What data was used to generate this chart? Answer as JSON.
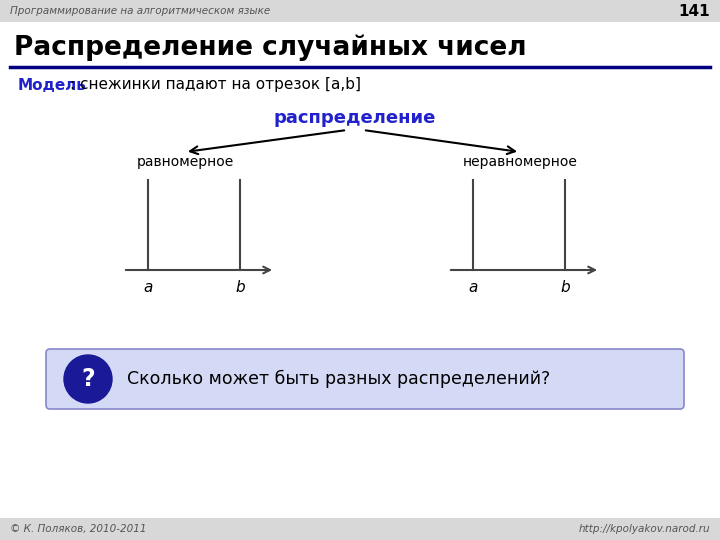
{
  "title": "Распределение случайных чисел",
  "subtitle_bold": "Модель",
  "subtitle_rest": ": снежинки падают на отрезок [a,b]",
  "tree_label": "распределение",
  "left_label": "равномерное",
  "right_label": "неравномерное",
  "question_text": "Сколько может быть разных распределений?",
  "footer_left": "© К. Поляков, 2010-2011",
  "footer_right": "http://kpolyakov.narod.ru",
  "page_number": "141",
  "header_text": "Программирование на алгоритмическом языке",
  "header_bg": "#d8d8d8",
  "slide_bg": "#ffffff",
  "title_color": "#000000",
  "subtitle_bold_color": "#2222cc",
  "tree_label_color": "#2222cc",
  "arrow_color": "#000000",
  "line_color": "#444444",
  "question_bg": "#d4daf5",
  "question_circle_bg": "#1a1a99",
  "question_text_color": "#000000",
  "footer_color": "#555555",
  "footer_bg": "#d8d8d8",
  "header_color": "#555555",
  "title_line_color": "#000080"
}
